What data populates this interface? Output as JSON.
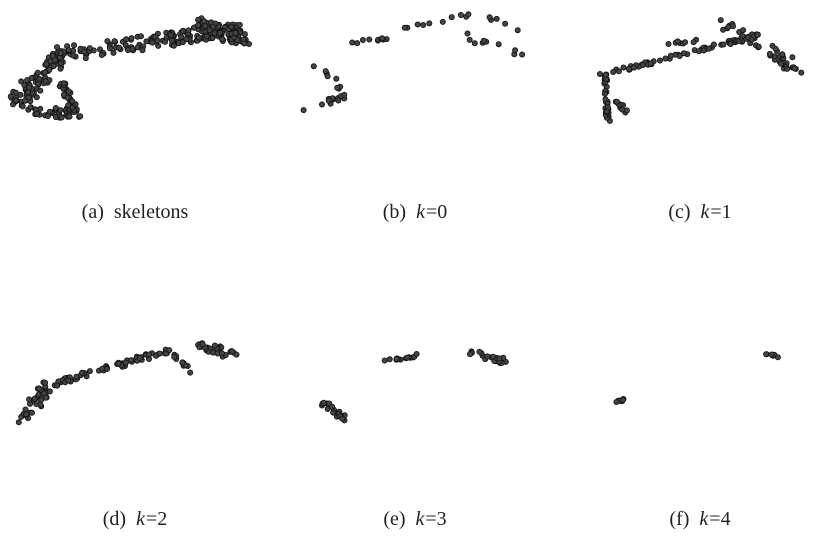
{
  "figure": {
    "panels": [
      {
        "label": "(a)",
        "text": "skeletons"
      },
      {
        "label": "(b)",
        "variable": "k",
        "text": "=0"
      },
      {
        "label": "(c)",
        "variable": "k",
        "text": "=1"
      },
      {
        "label": "(d)",
        "variable": "k",
        "text": "=2"
      },
      {
        "label": "(e)",
        "variable": "k",
        "text": "=3"
      },
      {
        "label": "(f)",
        "variable": "k",
        "text": "=4"
      }
    ]
  }
}
